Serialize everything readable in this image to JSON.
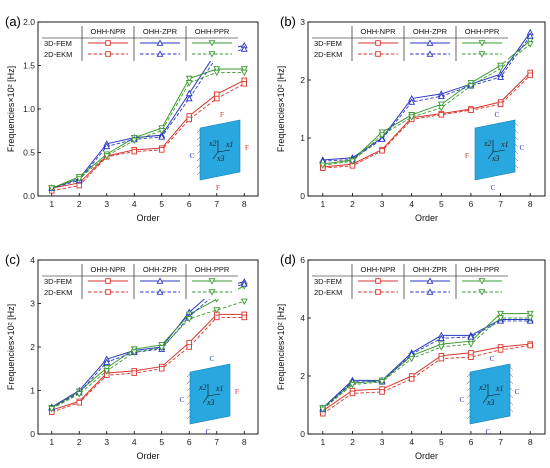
{
  "figure": {
    "colors": {
      "NPR": "#d9342b",
      "ZPR": "#2a37c4",
      "PPR": "#3a9a2f",
      "plate": "#29a8e0"
    },
    "legend": {
      "columns": [
        "OHH-NPR",
        "OHH-ZPR",
        "OHH-PPR"
      ],
      "rows": [
        "3D-FEM",
        "2D-EKM"
      ]
    },
    "inset_axes": [
      "x2",
      "x1",
      "x3"
    ]
  },
  "chart_data": [
    {
      "panel_label": "(a)",
      "type": "line",
      "xlabel": "Order",
      "ylabel": "Frequencies×10² [Hz]",
      "x": [
        1,
        2,
        3,
        4,
        5,
        6,
        7,
        8
      ],
      "ylim": [
        0,
        2.0
      ],
      "yticks": [
        "0.0",
        "0.5",
        "1.0",
        "1.5",
        "2.0"
      ],
      "inset_bc": {
        "top": "F",
        "left": "C",
        "right": "F",
        "bottom": "F"
      },
      "series": [
        {
          "name": "OHH-NPR 3D-FEM",
          "values": [
            0.09,
            0.15,
            0.46,
            0.53,
            0.55,
            0.92,
            1.17,
            1.33
          ]
        },
        {
          "name": "OHH-ZPR 3D-FEM",
          "values": [
            0.09,
            0.2,
            0.6,
            0.67,
            0.7,
            1.18,
            1.66,
            1.73
          ]
        },
        {
          "name": "OHH-PPR 3D-FEM",
          "values": [
            0.09,
            0.22,
            0.48,
            0.67,
            0.78,
            1.35,
            1.46,
            1.46
          ]
        },
        {
          "name": "OHH-NPR 2D-EKM",
          "values": [
            0.06,
            0.12,
            0.45,
            0.51,
            0.53,
            0.88,
            1.12,
            1.29
          ]
        },
        {
          "name": "OHH-ZPR 2D-EKM",
          "values": [
            0.09,
            0.18,
            0.57,
            0.65,
            0.68,
            1.12,
            1.6,
            1.69
          ]
        },
        {
          "name": "OHH-PPR 2D-EKM",
          "values": [
            0.09,
            0.2,
            0.46,
            0.64,
            0.75,
            1.3,
            1.42,
            1.42
          ]
        }
      ]
    },
    {
      "panel_label": "(b)",
      "type": "line",
      "xlabel": "Order",
      "ylabel": "Frequencies×10² [Hz]",
      "x": [
        1,
        2,
        3,
        4,
        5,
        6,
        7,
        8
      ],
      "ylim": [
        0,
        3
      ],
      "yticks": [
        "0",
        "1",
        "2",
        "3"
      ],
      "inset_bc": {
        "top": "C",
        "left": "F",
        "right": "C",
        "bottom": "C"
      },
      "series": [
        {
          "name": "OHH-NPR 3D-FEM",
          "values": [
            0.5,
            0.55,
            0.8,
            1.35,
            1.42,
            1.5,
            1.62,
            2.13
          ]
        },
        {
          "name": "OHH-ZPR 3D-FEM",
          "values": [
            0.62,
            0.66,
            1.0,
            1.68,
            1.76,
            1.93,
            2.1,
            2.82
          ]
        },
        {
          "name": "OHH-PPR 3D-FEM",
          "values": [
            0.55,
            0.62,
            1.1,
            1.4,
            1.58,
            1.95,
            2.25,
            2.68
          ]
        },
        {
          "name": "OHH-NPR 2D-EKM",
          "values": [
            0.48,
            0.52,
            0.78,
            1.32,
            1.4,
            1.48,
            1.58,
            2.08
          ]
        },
        {
          "name": "OHH-ZPR 2D-EKM",
          "values": [
            0.6,
            0.63,
            0.98,
            1.62,
            1.72,
            1.9,
            2.05,
            2.76
          ]
        },
        {
          "name": "OHH-PPR 2D-EKM",
          "values": [
            0.53,
            0.6,
            1.05,
            1.36,
            1.52,
            1.9,
            2.2,
            2.62
          ]
        }
      ]
    },
    {
      "panel_label": "(c)",
      "type": "line",
      "xlabel": "Order",
      "ylabel": "Frequencies×10² [Hz]",
      "x": [
        1,
        2,
        3,
        4,
        5,
        6,
        7,
        8
      ],
      "ylim": [
        0,
        4
      ],
      "yticks": [
        "0",
        "1",
        "2",
        "3",
        "4"
      ],
      "inset_bc": {
        "top": "C",
        "left": "C",
        "right": "F",
        "bottom": "C"
      },
      "series": [
        {
          "name": "OHH-NPR 3D-FEM",
          "values": [
            0.55,
            0.75,
            1.4,
            1.45,
            1.55,
            2.1,
            2.75,
            2.75
          ]
        },
        {
          "name": "OHH-ZPR 3D-FEM",
          "values": [
            0.62,
            1.0,
            1.72,
            1.92,
            2.0,
            2.8,
            3.35,
            3.5
          ]
        },
        {
          "name": "OHH-PPR 3D-FEM",
          "values": [
            0.6,
            0.98,
            1.52,
            1.95,
            2.05,
            2.75,
            3.1,
            3.4
          ]
        },
        {
          "name": "OHH-NPR 2D-EKM",
          "values": [
            0.5,
            0.72,
            1.35,
            1.4,
            1.5,
            2.0,
            2.68,
            2.68
          ]
        },
        {
          "name": "OHH-ZPR 2D-EKM",
          "values": [
            0.6,
            0.95,
            1.65,
            1.88,
            1.95,
            2.7,
            3.25,
            3.45
          ]
        },
        {
          "name": "OHH-PPR 2D-EKM",
          "values": [
            0.58,
            0.92,
            1.45,
            1.88,
            1.98,
            2.65,
            2.85,
            3.05
          ]
        }
      ]
    },
    {
      "panel_label": "(d)",
      "type": "line",
      "xlabel": "Order",
      "ylabel": "Frequencies×10² [Hz]",
      "x": [
        1,
        2,
        3,
        4,
        5,
        6,
        7,
        8
      ],
      "ylim": [
        0,
        6
      ],
      "yticks": [
        "0",
        "2",
        "4",
        "6"
      ],
      "inset_bc": {
        "top": "C",
        "left": "C",
        "right": "C",
        "bottom": "C"
      },
      "series": [
        {
          "name": "OHH-NPR 3D-FEM",
          "values": [
            0.8,
            1.5,
            1.55,
            2.0,
            2.7,
            2.8,
            3.0,
            3.1
          ]
        },
        {
          "name": "OHH-ZPR 3D-FEM",
          "values": [
            0.9,
            1.85,
            1.85,
            2.8,
            3.4,
            3.4,
            3.95,
            3.95
          ]
        },
        {
          "name": "OHH-PPR 3D-FEM",
          "values": [
            0.9,
            1.75,
            1.85,
            2.7,
            3.1,
            3.2,
            4.15,
            4.15
          ]
        },
        {
          "name": "OHH-NPR 2D-EKM",
          "values": [
            0.7,
            1.4,
            1.45,
            1.9,
            2.6,
            2.65,
            2.9,
            3.05
          ]
        },
        {
          "name": "OHH-ZPR 2D-EKM",
          "values": [
            0.85,
            1.8,
            1.8,
            2.75,
            3.3,
            3.35,
            3.9,
            3.9
          ]
        },
        {
          "name": "OHH-PPR 2D-EKM",
          "values": [
            0.85,
            1.7,
            1.8,
            2.6,
            3.0,
            3.1,
            4.0,
            4.0
          ]
        }
      ]
    }
  ]
}
